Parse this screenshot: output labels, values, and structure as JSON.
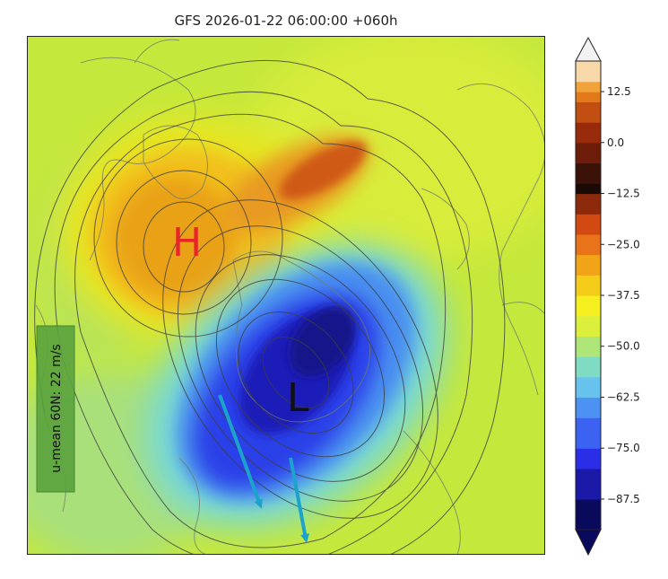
{
  "title": "GFS 2026-01-22 06:00:00 +060h",
  "annotations": {
    "high_label": "H",
    "low_label": "L",
    "umean_label": "u-mean 60N: 22 m/s",
    "high_color": "#e8262a",
    "low_color": "#111111",
    "arrow_color": "#1ca3cc",
    "umean_box_color": "#5aa33e"
  },
  "colorbar": {
    "min": -95,
    "max": 20,
    "extend": "both",
    "ticks": [
      {
        "value": 12.5,
        "label": "12.5"
      },
      {
        "value": 0,
        "label": "0.0"
      },
      {
        "value": -12.5,
        "label": "−12.5"
      },
      {
        "value": -25,
        "label": "−25.0"
      },
      {
        "value": -37.5,
        "label": "−37.5"
      },
      {
        "value": -50,
        "label": "−50.0"
      },
      {
        "value": -62.5,
        "label": "−62.5"
      },
      {
        "value": -75,
        "label": "−75.0"
      },
      {
        "value": -87.5,
        "label": "−87.5"
      }
    ],
    "stops": [
      {
        "value": -95,
        "color": "#0a0a5c"
      },
      {
        "value": -88,
        "color": "#1b1aa8"
      },
      {
        "value": -80,
        "color": "#2a2ee6"
      },
      {
        "value": -74,
        "color": "#3b62f0"
      },
      {
        "value": -68,
        "color": "#4d92f2"
      },
      {
        "value": -63,
        "color": "#67c3ee"
      },
      {
        "value": -58,
        "color": "#7fdcc2"
      },
      {
        "value": -53,
        "color": "#aee67a"
      },
      {
        "value": -47,
        "color": "#dcef3c"
      },
      {
        "value": -42,
        "color": "#f6f020"
      },
      {
        "value": -37.5,
        "color": "#f6cc1a"
      },
      {
        "value": -32,
        "color": "#f2a418"
      },
      {
        "value": -27,
        "color": "#e8731a"
      },
      {
        "value": -22,
        "color": "#d24a12"
      },
      {
        "value": -17,
        "color": "#8e2a0c"
      },
      {
        "value": -13,
        "color": "#1a0a06"
      },
      {
        "value": -11,
        "color": "#3a1208"
      },
      {
        "value": -5,
        "color": "#6e1c0a"
      },
      {
        "value": 0,
        "color": "#9a2a0c"
      },
      {
        "value": 5,
        "color": "#c24e12"
      },
      {
        "value": 9,
        "color": "#e27a1a"
      },
      {
        "value": 12.5,
        "color": "#f2a23a"
      },
      {
        "value": 16,
        "color": "#f8d8a8"
      },
      {
        "value": 20,
        "color": "#f2f2f2"
      }
    ]
  }
}
